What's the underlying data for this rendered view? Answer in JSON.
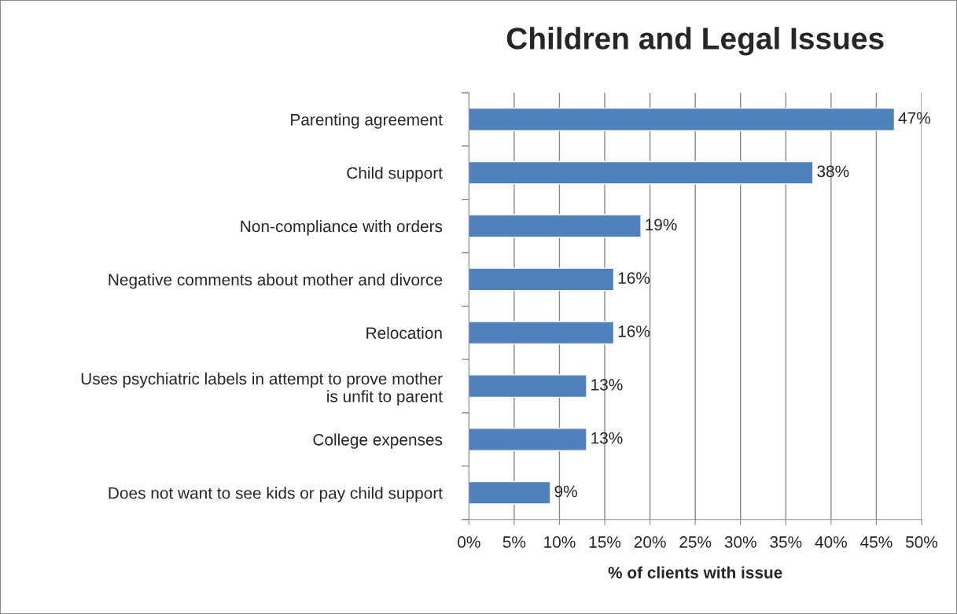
{
  "chart_data": {
    "type": "bar",
    "orientation": "horizontal",
    "title": "Children and Legal Issues",
    "xlabel": "% of clients with issue",
    "categories": [
      "Parenting agreement",
      "Child support",
      "Non-compliance with orders",
      "Negative comments about mother and divorce",
      "Relocation",
      "Uses psychiatric labels in attempt to prove mother\nis unfit to parent",
      "College expenses",
      "Does not want to see kids or pay child support"
    ],
    "values": [
      47,
      38,
      19,
      16,
      16,
      13,
      13,
      9
    ],
    "color": "#4f81bd",
    "value_labels": [
      "47%",
      "38%",
      "19%",
      "16%",
      "16%",
      "13%",
      "13%",
      "9%"
    ],
    "xlim": [
      0,
      50
    ],
    "xticks": [
      {
        "value": 0,
        "label": "0%"
      },
      {
        "value": 5,
        "label": "5%"
      },
      {
        "value": 10,
        "label": "10%"
      },
      {
        "value": 15,
        "label": "15%"
      },
      {
        "value": 20,
        "label": "20%"
      },
      {
        "value": 25,
        "label": "25%"
      },
      {
        "value": 30,
        "label": "30%"
      },
      {
        "value": 35,
        "label": "35%"
      },
      {
        "value": 40,
        "label": "40%"
      },
      {
        "value": 45,
        "label": "45%"
      },
      {
        "value": 50,
        "label": "50%"
      }
    ],
    "grid": "x",
    "legend": false
  }
}
